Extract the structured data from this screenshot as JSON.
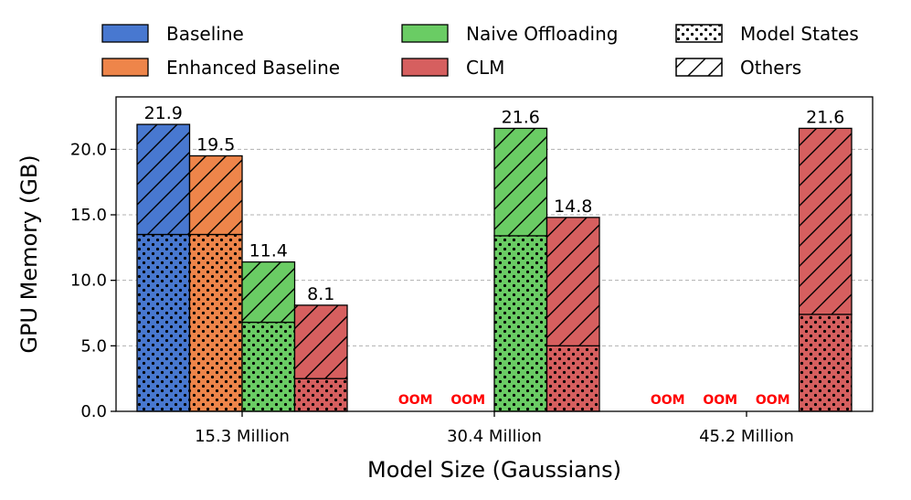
{
  "chart_data": {
    "type": "bar",
    "stacked": true,
    "xlabel": "Model Size (Gaussians)",
    "ylabel": "GPU Memory (GB)",
    "ylim": [
      0,
      24
    ],
    "yticks": [
      "0.0",
      "5.0",
      "10.0",
      "15.0",
      "20.0"
    ],
    "grid": "y-dashed",
    "legend_position": "top",
    "categories": [
      "15.3 Million",
      "30.4 Million",
      "45.2 Million"
    ],
    "series": [
      {
        "name": "Baseline",
        "color": "#4878d0",
        "model_states": [
          13.5,
          null,
          null
        ],
        "totals": [
          21.9,
          null,
          null
        ],
        "labels": [
          "21.9",
          "OOM",
          "OOM"
        ]
      },
      {
        "name": "Enhanced Baseline",
        "color": "#ee854a",
        "model_states": [
          13.5,
          null,
          null
        ],
        "totals": [
          19.5,
          null,
          null
        ],
        "labels": [
          "19.5",
          "OOM",
          "OOM"
        ]
      },
      {
        "name": "Naive Offloading",
        "color": "#6acc64",
        "model_states": [
          6.8,
          13.4,
          null
        ],
        "totals": [
          11.4,
          21.6,
          null
        ],
        "labels": [
          "11.4",
          "21.6",
          "OOM"
        ]
      },
      {
        "name": "CLM",
        "color": "#d65f5f",
        "model_states": [
          2.5,
          5.0,
          7.4
        ],
        "totals": [
          8.1,
          14.8,
          21.6
        ],
        "labels": [
          "8.1",
          "14.8",
          "21.6"
        ]
      }
    ],
    "components": [
      {
        "name": "Model States",
        "pattern": "dots"
      },
      {
        "name": "Others",
        "pattern": "hatch"
      }
    ],
    "oom_text": "OOM"
  }
}
